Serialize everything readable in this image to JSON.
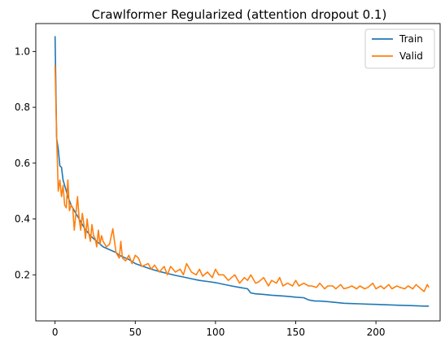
{
  "chart_data": {
    "type": "line",
    "title": "Crawlformer Regularized (attention dropout 0.1)",
    "xlabel": "",
    "ylabel": "",
    "xlim": [
      -12,
      240
    ],
    "ylim": [
      0.035,
      1.1
    ],
    "x_ticks": [
      0,
      50,
      100,
      150,
      200
    ],
    "y_ticks": [
      0.2,
      0.4,
      0.6,
      0.8,
      1.0
    ],
    "x_tick_labels": [
      "0",
      "50",
      "100",
      "150",
      "200"
    ],
    "y_tick_labels": [
      "0.2",
      "0.4",
      "0.6",
      "0.8",
      "1.0"
    ],
    "grid": false,
    "legend_position": "top-right",
    "series": [
      {
        "name": "Train",
        "color": "#1f77b4",
        "x": [
          0,
          1,
          2,
          3,
          4,
          5,
          6,
          7,
          8,
          9,
          10,
          11,
          12,
          13,
          14,
          15,
          16,
          17,
          18,
          19,
          20,
          22,
          24,
          26,
          28,
          30,
          32,
          34,
          36,
          38,
          40,
          42,
          44,
          46,
          48,
          50,
          55,
          60,
          65,
          70,
          75,
          80,
          85,
          90,
          95,
          100,
          105,
          110,
          115,
          120,
          122,
          125,
          130,
          135,
          140,
          145,
          150,
          155,
          158,
          162,
          165,
          170,
          175,
          180,
          185,
          190,
          195,
          200,
          205,
          210,
          215,
          220,
          225,
          230,
          233
        ],
        "values": [
          1.055,
          0.69,
          0.65,
          0.59,
          0.585,
          0.54,
          0.52,
          0.5,
          0.48,
          0.465,
          0.45,
          0.44,
          0.43,
          0.42,
          0.41,
          0.4,
          0.39,
          0.38,
          0.37,
          0.36,
          0.355,
          0.34,
          0.33,
          0.32,
          0.31,
          0.3,
          0.295,
          0.29,
          0.285,
          0.28,
          0.27,
          0.265,
          0.26,
          0.255,
          0.248,
          0.24,
          0.23,
          0.22,
          0.212,
          0.205,
          0.198,
          0.192,
          0.186,
          0.18,
          0.176,
          0.172,
          0.166,
          0.16,
          0.155,
          0.15,
          0.135,
          0.132,
          0.13,
          0.127,
          0.125,
          0.123,
          0.12,
          0.118,
          0.11,
          0.106,
          0.106,
          0.104,
          0.101,
          0.098,
          0.097,
          0.096,
          0.095,
          0.094,
          0.093,
          0.092,
          0.091,
          0.09,
          0.089,
          0.088,
          0.088
        ]
      },
      {
        "name": "Valid",
        "color": "#ff7f0e",
        "x": [
          0,
          1,
          2,
          3,
          4,
          5,
          6,
          7,
          8,
          9,
          10,
          11,
          12,
          13,
          14,
          15,
          16,
          17,
          18,
          19,
          20,
          21,
          22,
          23,
          24,
          25,
          26,
          27,
          28,
          29,
          30,
          32,
          34,
          36,
          38,
          40,
          41,
          42,
          44,
          46,
          48,
          50,
          52,
          54,
          56,
          58,
          60,
          62,
          65,
          68,
          70,
          72,
          75,
          78,
          80,
          82,
          85,
          88,
          90,
          92,
          95,
          98,
          100,
          102,
          105,
          108,
          110,
          112,
          115,
          118,
          120,
          122,
          125,
          127,
          130,
          133,
          135,
          138,
          140,
          142,
          145,
          148,
          150,
          152,
          155,
          158,
          160,
          163,
          165,
          168,
          170,
          173,
          175,
          178,
          180,
          183,
          185,
          188,
          190,
          193,
          195,
          198,
          200,
          203,
          205,
          208,
          210,
          213,
          215,
          218,
          220,
          223,
          225,
          228,
          230,
          232,
          233
        ],
        "values": [
          0.95,
          0.7,
          0.5,
          0.54,
          0.48,
          0.52,
          0.45,
          0.44,
          0.54,
          0.43,
          0.45,
          0.44,
          0.36,
          0.42,
          0.48,
          0.4,
          0.36,
          0.42,
          0.38,
          0.33,
          0.4,
          0.35,
          0.32,
          0.38,
          0.34,
          0.33,
          0.3,
          0.36,
          0.31,
          0.34,
          0.32,
          0.3,
          0.31,
          0.365,
          0.28,
          0.26,
          0.32,
          0.26,
          0.25,
          0.27,
          0.24,
          0.27,
          0.26,
          0.23,
          0.235,
          0.24,
          0.22,
          0.235,
          0.21,
          0.23,
          0.2,
          0.23,
          0.21,
          0.22,
          0.2,
          0.24,
          0.21,
          0.2,
          0.22,
          0.195,
          0.21,
          0.19,
          0.22,
          0.2,
          0.2,
          0.18,
          0.19,
          0.2,
          0.17,
          0.19,
          0.18,
          0.2,
          0.17,
          0.175,
          0.19,
          0.16,
          0.18,
          0.17,
          0.19,
          0.16,
          0.17,
          0.16,
          0.18,
          0.16,
          0.17,
          0.16,
          0.16,
          0.155,
          0.17,
          0.15,
          0.16,
          0.16,
          0.15,
          0.165,
          0.15,
          0.155,
          0.16,
          0.15,
          0.16,
          0.15,
          0.155,
          0.17,
          0.15,
          0.16,
          0.15,
          0.165,
          0.15,
          0.16,
          0.155,
          0.15,
          0.16,
          0.15,
          0.165,
          0.15,
          0.14,
          0.165,
          0.155
        ]
      }
    ]
  }
}
